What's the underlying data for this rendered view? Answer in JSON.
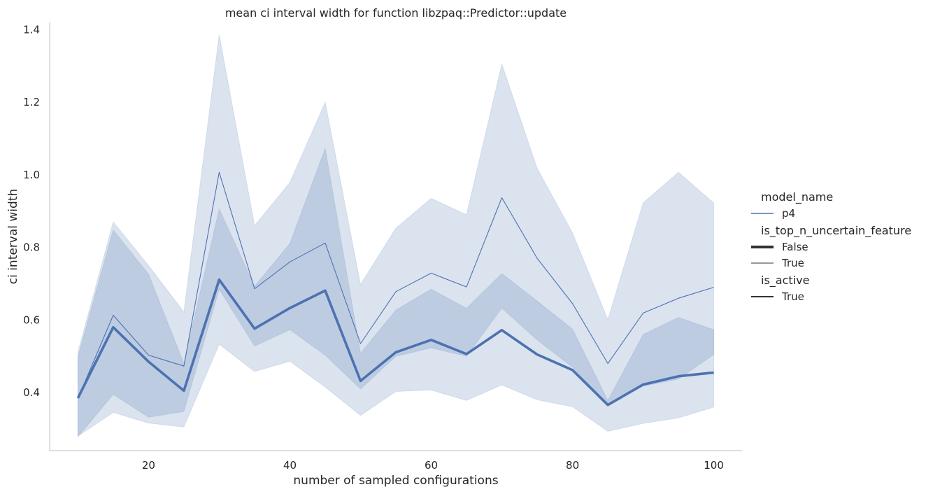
{
  "chart_data": {
    "type": "line",
    "title": "mean ci interval width for function libzpaq::Predictor::update",
    "xlabel": "number of sampled configurations",
    "ylabel": "ci interval width",
    "xlim": [
      6,
      104
    ],
    "ylim": [
      0.24,
      1.42
    ],
    "xticks": [
      20,
      40,
      60,
      80,
      100
    ],
    "yticks": [
      0.4,
      0.6,
      0.8,
      1.0,
      1.2,
      1.4
    ],
    "ytick_labels": [
      "0.4",
      "0.6",
      "0.8",
      "1.0",
      "1.2",
      "1.4"
    ],
    "grid": false,
    "color": "#4c72b0",
    "x": [
      10,
      15,
      20,
      25,
      30,
      35,
      40,
      45,
      50,
      55,
      60,
      65,
      70,
      75,
      80,
      85,
      90,
      95,
      100
    ],
    "series": [
      {
        "name": "False",
        "model_name": "p4",
        "is_top_n_uncertain_feature": "False",
        "is_active": "True",
        "values": [
          0.385,
          0.58,
          0.485,
          0.405,
          0.711,
          0.576,
          0.633,
          0.681,
          0.432,
          0.511,
          0.545,
          0.506,
          0.572,
          0.505,
          0.462,
          0.366,
          0.422,
          0.445,
          0.455
        ],
        "ci_low": [
          0.278,
          0.395,
          0.332,
          0.348,
          0.685,
          0.528,
          0.573,
          0.503,
          0.41,
          0.5,
          0.523,
          0.5,
          0.633,
          0.545,
          0.47,
          0.366,
          0.418,
          0.437,
          0.505
        ],
        "ci_high": [
          0.498,
          0.848,
          0.726,
          0.48,
          0.906,
          0.693,
          0.811,
          1.073,
          0.508,
          0.627,
          0.685,
          0.632,
          0.728,
          0.652,
          0.575,
          0.378,
          0.56,
          0.607,
          0.573
        ]
      },
      {
        "name": "True",
        "model_name": "p4",
        "is_top_n_uncertain_feature": "True",
        "is_active": "True",
        "values": [
          0.384,
          0.613,
          0.503,
          0.473,
          1.007,
          0.686,
          0.76,
          0.812,
          0.535,
          0.678,
          0.729,
          0.691,
          0.937,
          0.77,
          0.645,
          0.48,
          0.619,
          0.66,
          0.69
        ],
        "ci_low": [
          0.28,
          0.345,
          0.316,
          0.305,
          0.533,
          0.458,
          0.486,
          0.415,
          0.337,
          0.403,
          0.407,
          0.378,
          0.421,
          0.38,
          0.361,
          0.293,
          0.315,
          0.33,
          0.36
        ],
        "ci_high": [
          0.512,
          0.87,
          0.75,
          0.622,
          1.386,
          0.86,
          0.979,
          1.2,
          0.698,
          0.853,
          0.935,
          0.89,
          1.305,
          1.018,
          0.84,
          0.601,
          0.923,
          1.007,
          0.922
        ]
      }
    ],
    "legend": {
      "placement": "right",
      "groups": [
        {
          "title": "model_name",
          "entries": [
            {
              "label": "p4",
              "style": "hue"
            }
          ]
        },
        {
          "title": "is_top_n_uncertain_feature",
          "entries": [
            {
              "label": "False",
              "style": "thick"
            },
            {
              "label": "True",
              "style": "thin"
            }
          ]
        },
        {
          "title": "is_active",
          "entries": [
            {
              "label": "True",
              "style": "solid"
            }
          ]
        }
      ]
    }
  }
}
